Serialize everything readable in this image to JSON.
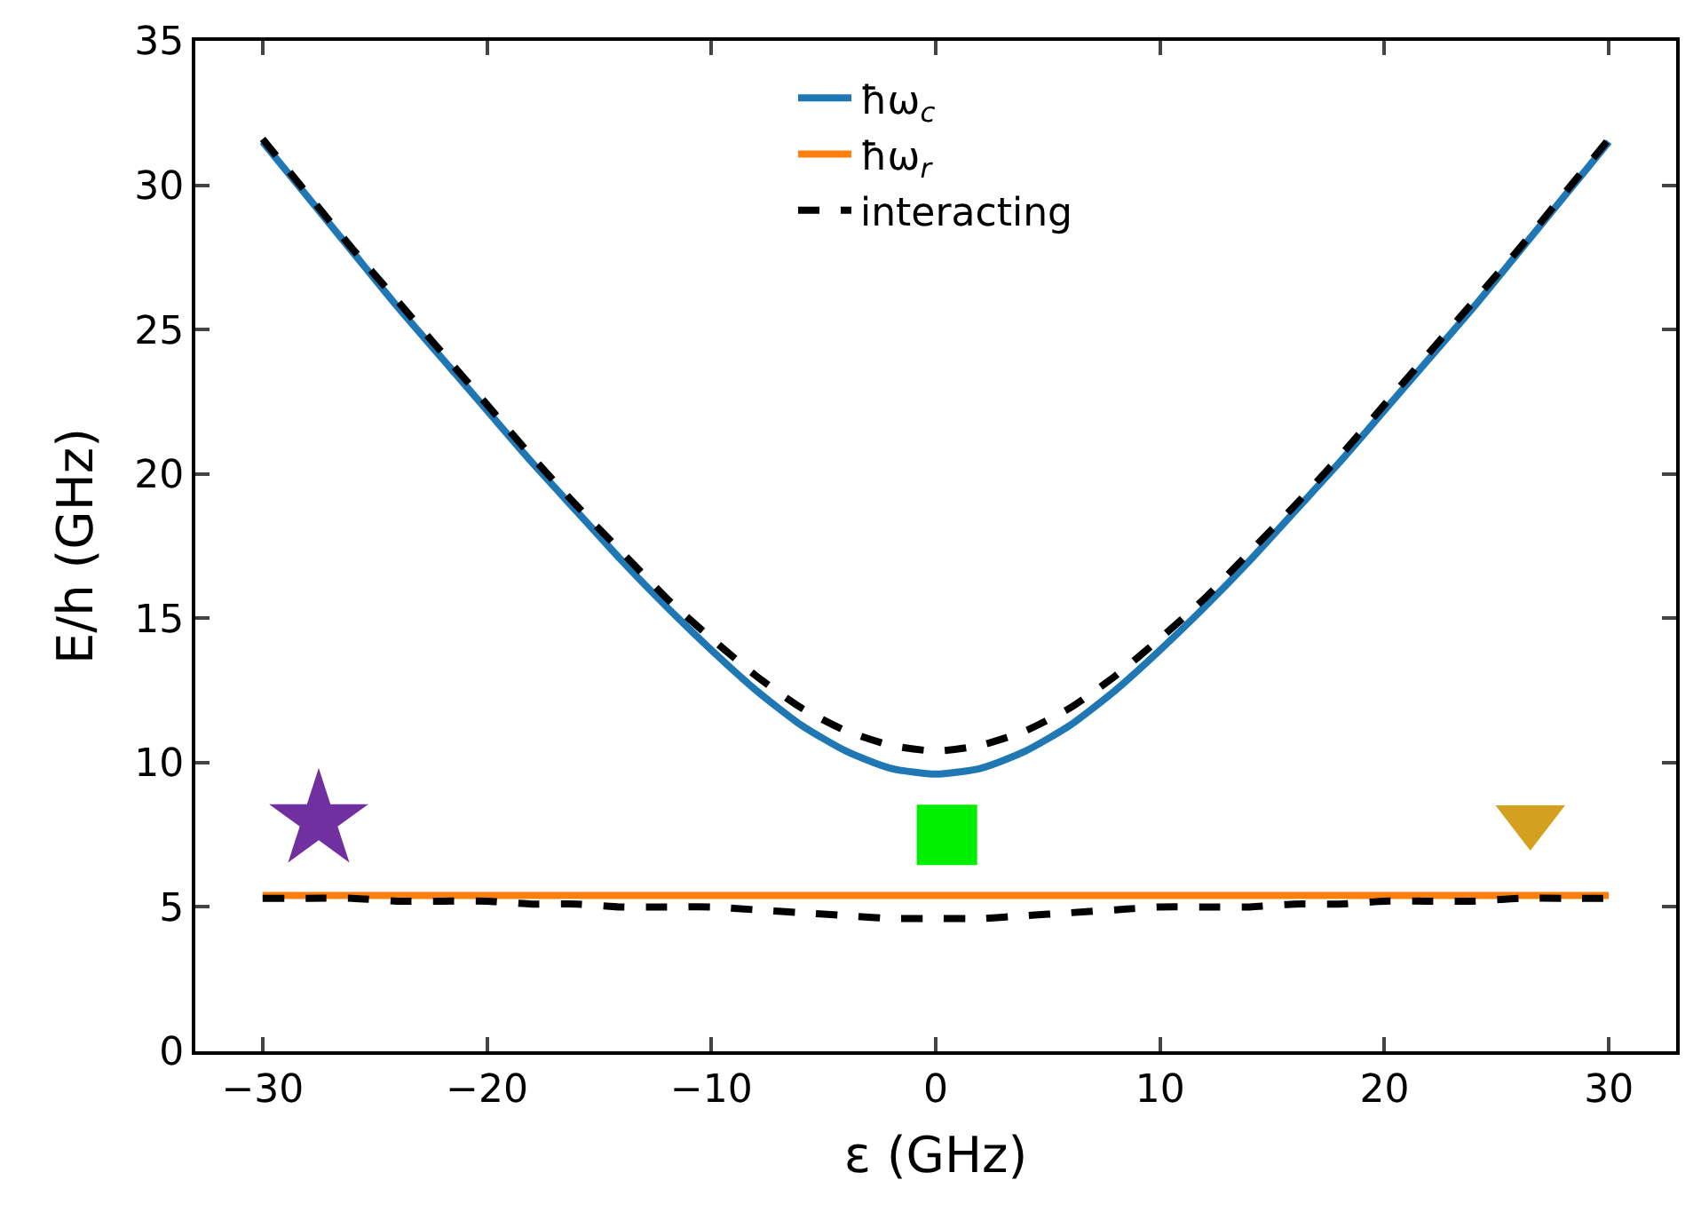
{
  "chart_data": {
    "type": "line",
    "xlabel": "ε (GHz)",
    "ylabel": "E/h (GHz)",
    "xlim": [
      -33,
      33
    ],
    "xticks": [
      {
        "value": -30,
        "label": "−30"
      },
      {
        "value": -20,
        "label": "−20"
      },
      {
        "value": -10,
        "label": "−10"
      },
      0,
      10,
      20,
      30
    ],
    "ylim": [
      0,
      35
    ],
    "yticks": [
      0,
      5,
      10,
      15,
      20,
      25,
      30,
      35
    ],
    "legend": "top",
    "marker": "none",
    "x": [
      -30,
      -28,
      -26,
      -24,
      -22,
      -20,
      -18,
      -16,
      -14,
      -12,
      -10,
      -8,
      -6,
      -4,
      -2,
      0,
      2,
      4,
      6,
      8,
      10,
      12,
      14,
      16,
      18,
      20,
      22,
      24,
      26,
      28,
      30
    ],
    "series": [
      {
        "name": "ħω$_{c}$",
        "color": "#1f77b4",
        "line_style": "solid",
        "values": [
          31.5,
          29.6,
          27.7,
          25.8,
          24.0,
          22.2,
          20.4,
          18.7,
          17.0,
          15.4,
          13.9,
          12.5,
          11.3,
          10.4,
          9.8,
          9.6,
          9.8,
          10.4,
          11.3,
          12.5,
          13.9,
          15.4,
          17.0,
          18.7,
          20.4,
          22.2,
          24.0,
          25.8,
          27.7,
          29.6,
          31.5
        ]
      },
      {
        "name": "ħω$_{r}$",
        "color": "#ff7f0e",
        "line_style": "solid",
        "x": [
          -30,
          30
        ],
        "values": [
          5.4,
          5.4
        ]
      },
      {
        "name": "interacting",
        "color": "#000000",
        "line_style": "dashed",
        "values": [
          31.6,
          29.7,
          27.8,
          26.0,
          24.2,
          22.4,
          20.6,
          18.9,
          17.3,
          15.7,
          14.3,
          13.0,
          11.9,
          11.1,
          10.6,
          10.4,
          10.6,
          11.1,
          11.9,
          13.0,
          14.3,
          15.7,
          17.3,
          18.9,
          20.6,
          22.4,
          24.2,
          26.0,
          27.8,
          29.7,
          31.6
        ]
      },
      {
        "color": "#000000",
        "line_style": "dashed",
        "values": [
          5.3,
          5.3,
          5.3,
          5.2,
          5.2,
          5.2,
          5.1,
          5.1,
          5.0,
          5.0,
          5.0,
          4.9,
          4.8,
          4.7,
          4.6,
          4.6,
          4.6,
          4.7,
          4.8,
          4.9,
          5.0,
          5.0,
          5.0,
          5.1,
          5.1,
          5.2,
          5.2,
          5.2,
          5.3,
          5.3,
          5.3
        ]
      },
      {
        "type": "scatter",
        "marker": "star",
        "color": "#7030a0",
        "x": [
          -27.5
        ],
        "values": [
          8.0
        ]
      },
      {
        "type": "scatter",
        "marker": "square",
        "color": "#00ee00",
        "x": [
          0.5
        ],
        "values": [
          7.5
        ]
      },
      {
        "type": "scatter",
        "marker": "triangle",
        "color": "#d4a020",
        "x": [
          26.5
        ],
        "values": [
          8.0
        ]
      }
    ]
  }
}
